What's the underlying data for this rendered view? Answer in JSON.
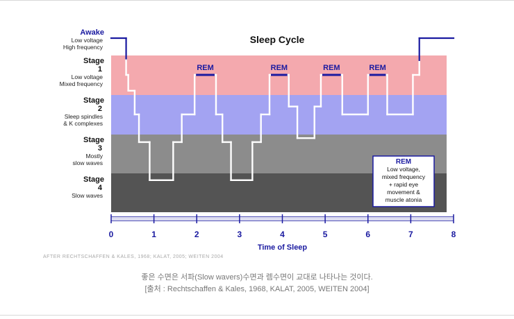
{
  "chart_data": {
    "type": "line",
    "title": "Sleep Cycle",
    "xlabel": "Time of Sleep",
    "ylabel": "",
    "xlim": [
      0,
      8
    ],
    "x_ticks": [
      "0",
      "1",
      "2",
      "3",
      "4",
      "5",
      "6",
      "7",
      "8"
    ],
    "stages": [
      {
        "key": "awake",
        "title": "Awake",
        "desc": [
          "Low voltage",
          "High frequency"
        ]
      },
      {
        "key": "s1",
        "title": "Stage",
        "num": "1",
        "desc": [
          "Low voltage",
          "Mixed frequency"
        ]
      },
      {
        "key": "s2",
        "title": "Stage",
        "num": "2",
        "desc": [
          "Sleep spindles",
          "& K complexes"
        ]
      },
      {
        "key": "s3",
        "title": "Stage",
        "num": "3",
        "desc": [
          "Mostly",
          "slow waves"
        ]
      },
      {
        "key": "s4",
        "title": "Stage",
        "num": "4",
        "desc": [
          "Slow waves"
        ]
      }
    ],
    "band_colors": {
      "s1": "#f4a9ae",
      "s2": "#a3a3f2",
      "s3": "#8c8c8c",
      "s4": "#545454"
    },
    "line_color": "#ffffff",
    "awake_line_color": "#1a1aa0",
    "series": [
      {
        "points": [
          [
            0.0,
            0.0
          ],
          [
            0.35,
            0.0
          ],
          [
            0.35,
            0.6
          ],
          [
            0.35,
            1.0
          ],
          [
            0.4,
            1.0
          ],
          [
            0.4,
            1.4
          ],
          [
            0.55,
            1.4
          ],
          [
            0.55,
            2.0
          ],
          [
            0.65,
            2.0
          ],
          [
            0.65,
            2.7
          ],
          [
            0.9,
            2.7
          ],
          [
            0.9,
            3.7
          ],
          [
            1.45,
            3.7
          ],
          [
            1.45,
            2.7
          ],
          [
            1.65,
            2.7
          ],
          [
            1.65,
            2.0
          ],
          [
            1.95,
            2.0
          ],
          [
            1.95,
            1.0
          ],
          [
            2.45,
            1.0
          ],
          [
            2.45,
            2.0
          ],
          [
            2.6,
            2.0
          ],
          [
            2.6,
            2.7
          ],
          [
            2.8,
            2.7
          ],
          [
            2.8,
            3.7
          ],
          [
            3.3,
            3.7
          ],
          [
            3.3,
            2.7
          ],
          [
            3.5,
            2.7
          ],
          [
            3.5,
            2.0
          ],
          [
            3.7,
            2.0
          ],
          [
            3.7,
            1.0
          ],
          [
            4.15,
            1.0
          ],
          [
            4.15,
            1.8
          ],
          [
            4.35,
            1.8
          ],
          [
            4.35,
            2.6
          ],
          [
            4.75,
            2.6
          ],
          [
            4.75,
            1.8
          ],
          [
            4.9,
            1.8
          ],
          [
            4.9,
            1.0
          ],
          [
            5.4,
            1.0
          ],
          [
            5.4,
            2.0
          ],
          [
            6.0,
            2.0
          ],
          [
            6.0,
            1.0
          ],
          [
            6.45,
            1.0
          ],
          [
            6.45,
            2.0
          ],
          [
            7.05,
            2.0
          ],
          [
            7.05,
            1.0
          ],
          [
            7.2,
            1.0
          ],
          [
            7.2,
            0.6
          ],
          [
            7.2,
            0.0
          ],
          [
            8.0,
            0.0
          ]
        ]
      }
    ],
    "rem_segments": [
      [
        1.95,
        2.45
      ],
      [
        3.7,
        4.15
      ],
      [
        4.9,
        5.4
      ],
      [
        6.0,
        6.45
      ]
    ],
    "rem_label": "REM",
    "legend_box": {
      "title": "REM",
      "lines": [
        "Low voltage,",
        "mixed frequency",
        "+ rapid eye",
        "movement &",
        "muscle atonia"
      ],
      "placement": "bottom-right"
    }
  },
  "credit": "AFTER RECHTSCHAFFEN & KALES, 1968; KALAT, 2005; WEITEN 2004",
  "caption_line1": "좋은 수면은 서파(Slow wavers)수면과 렘수면이 교대로 나타나는 것이다.",
  "caption_line2": "[출처 :  Rechtschaffen & Kales, 1968, KALAT, 2005, WEITEN 2004]"
}
